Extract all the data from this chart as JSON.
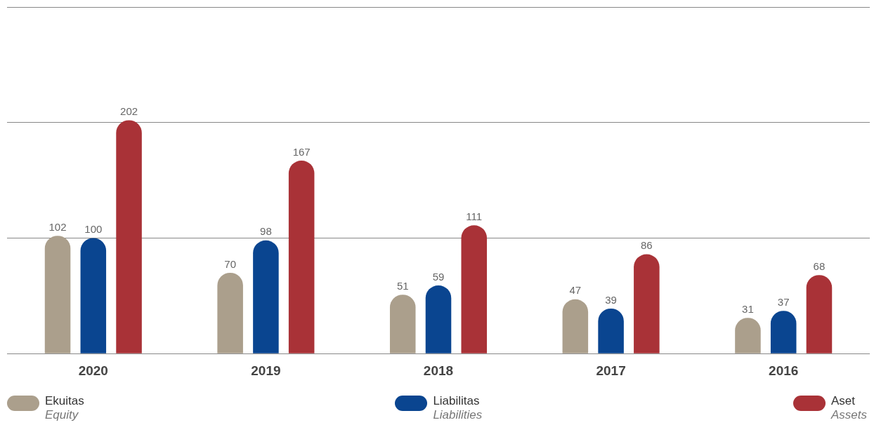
{
  "chart_data": {
    "type": "bar",
    "categories": [
      "2020",
      "2019",
      "2018",
      "2017",
      "2016"
    ],
    "series": [
      {
        "name": "Ekuitas\nEquity",
        "color": "#ab9f8c",
        "values": [
          102,
          70,
          51,
          47,
          31
        ]
      },
      {
        "name": "Liabilitas\nLiabilities",
        "color": "#0a4590",
        "values": [
          100,
          98,
          59,
          39,
          37
        ]
      },
      {
        "name": "Aset\nAssets",
        "color": "#a93237",
        "values": [
          202,
          167,
          111,
          86,
          68
        ]
      }
    ],
    "ylim": [
      0,
      300
    ],
    "yticks": [
      {
        "value": 0,
        "label": null
      },
      {
        "value": 100,
        "label": null
      },
      {
        "value": 200,
        "label": null
      },
      {
        "value": 300,
        "label": null
      }
    ],
    "tick_labels": "x",
    "grid": "y",
    "data_labels": true,
    "legend": "bottom"
  }
}
